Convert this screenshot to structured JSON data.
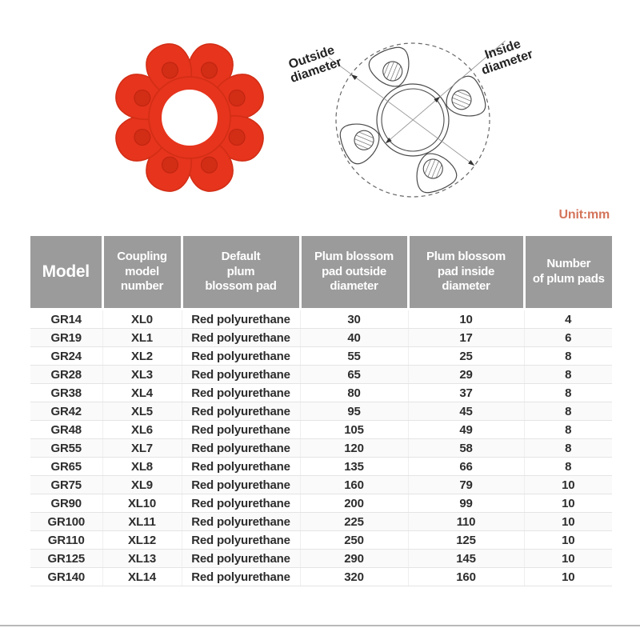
{
  "unit_label": "Unit:mm",
  "diagram": {
    "outside_label_line1": "Outside",
    "outside_label_line2": "diameter",
    "inside_label_line1": "Inside",
    "inside_label_line2": "diameter"
  },
  "product_photo": {
    "alt": "red-plum-blossom-coupling-pad",
    "petal_count": 8
  },
  "colors": {
    "pad_red": "#e6341d",
    "pad_red_dark": "#d22d15",
    "unit_label_text": "#d4755b",
    "table_header_bg": "#9b9b9b",
    "table_header_text": "#ffffff",
    "cell_text": "#2d2d2d"
  },
  "table": {
    "headers": [
      "Model",
      "Coupling\nmodel\nnumber",
      "Default\nplum\nblossom pad",
      "Plum blossom\npad outside\ndiameter",
      "Plum blossom\npad inside\ndiameter",
      "Number\nof plum pads"
    ],
    "rows": [
      [
        "GR14",
        "XL0",
        "Red polyurethane",
        "30",
        "10",
        "4"
      ],
      [
        "GR19",
        "XL1",
        "Red polyurethane",
        "40",
        "17",
        "6"
      ],
      [
        "GR24",
        "XL2",
        "Red polyurethane",
        "55",
        "25",
        "8"
      ],
      [
        "GR28",
        "XL3",
        "Red polyurethane",
        "65",
        "29",
        "8"
      ],
      [
        "GR38",
        "XL4",
        "Red polyurethane",
        "80",
        "37",
        "8"
      ],
      [
        "GR42",
        "XL5",
        "Red polyurethane",
        "95",
        "45",
        "8"
      ],
      [
        "GR48",
        "XL6",
        "Red polyurethane",
        "105",
        "49",
        "8"
      ],
      [
        "GR55",
        "XL7",
        "Red polyurethane",
        "120",
        "58",
        "8"
      ],
      [
        "GR65",
        "XL8",
        "Red polyurethane",
        "135",
        "66",
        "8"
      ],
      [
        "GR75",
        "XL9",
        "Red polyurethane",
        "160",
        "79",
        "10"
      ],
      [
        "GR90",
        "XL10",
        "Red polyurethane",
        "200",
        "99",
        "10"
      ],
      [
        "GR100",
        "XL11",
        "Red polyurethane",
        "225",
        "110",
        "10"
      ],
      [
        "GR110",
        "XL12",
        "Red polyurethane",
        "250",
        "125",
        "10"
      ],
      [
        "GR125",
        "XL13",
        "Red polyurethane",
        "290",
        "145",
        "10"
      ],
      [
        "GR140",
        "XL14",
        "Red polyurethane",
        "320",
        "160",
        "10"
      ]
    ]
  }
}
